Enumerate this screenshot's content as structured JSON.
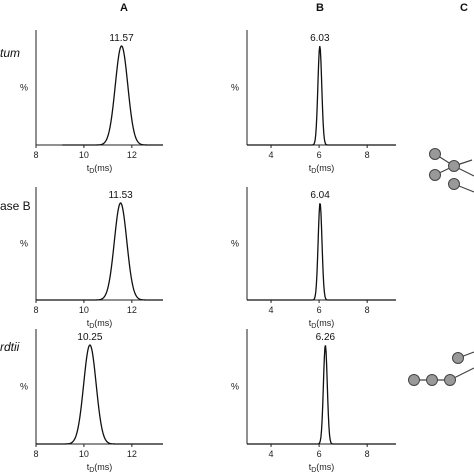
{
  "column_headers": [
    "A",
    "B",
    "C"
  ],
  "row_labels": [
    {
      "text": "tum",
      "italic": true
    },
    {
      "text": "ase B",
      "italic": false
    },
    {
      "text": "rdtii",
      "italic": true
    }
  ],
  "chart_data": [
    {
      "type": "line",
      "panel": "A-row1",
      "peak_label": "11.57",
      "peak_x": 11.57,
      "sigma": 0.26,
      "xlim": [
        8,
        13.3
      ],
      "xticks": [
        8,
        10,
        12
      ],
      "baseline_start": 9.1,
      "ylabel": "%",
      "xlabel": "tD(ms)"
    },
    {
      "type": "line",
      "panel": "B-row1",
      "peak_label": "6.03",
      "peak_x": 6.03,
      "sigma": 0.08,
      "xlim": [
        3,
        9.2
      ],
      "xticks": [
        4,
        6,
        8
      ],
      "baseline_start": 3,
      "ylabel": "%",
      "xlabel": "tD(ms)"
    },
    {
      "type": "line",
      "panel": "A-row2",
      "peak_label": "11.53",
      "peak_x": 11.53,
      "sigma": 0.26,
      "xlim": [
        8,
        13.3
      ],
      "xticks": [
        8,
        10,
        12
      ],
      "baseline_start": 8,
      "ylabel": "%",
      "xlabel": "tD(ms)"
    },
    {
      "type": "line",
      "panel": "B-row2",
      "peak_label": "6.04",
      "peak_x": 6.04,
      "sigma": 0.08,
      "xlim": [
        3,
        9.2
      ],
      "xticks": [
        4,
        6,
        8
      ],
      "baseline_start": 3,
      "ylabel": "%",
      "xlabel": "tD(ms)"
    },
    {
      "type": "line",
      "panel": "A-row3",
      "peak_label": "10.25",
      "peak_x": 10.25,
      "sigma": 0.26,
      "xlim": [
        8,
        13.3
      ],
      "xticks": [
        8,
        10,
        12
      ],
      "baseline_start": 8,
      "ylabel": "%",
      "xlabel": "tD(ms)"
    },
    {
      "type": "line",
      "panel": "B-row3",
      "peak_label": "6.26",
      "peak_x": 6.26,
      "sigma": 0.08,
      "xlim": [
        3,
        9.2
      ],
      "xticks": [
        4,
        6,
        8
      ],
      "baseline_start": 3,
      "ylabel": "%",
      "xlabel": "tD(ms)"
    }
  ],
  "colors": {
    "line": "#111111",
    "axis": "#222222",
    "node_fill": "#999999",
    "node_stroke": "#444444"
  },
  "column_c": {
    "icon_names": [
      "branched-glycan-icon",
      "linear-glycan-icon"
    ]
  }
}
